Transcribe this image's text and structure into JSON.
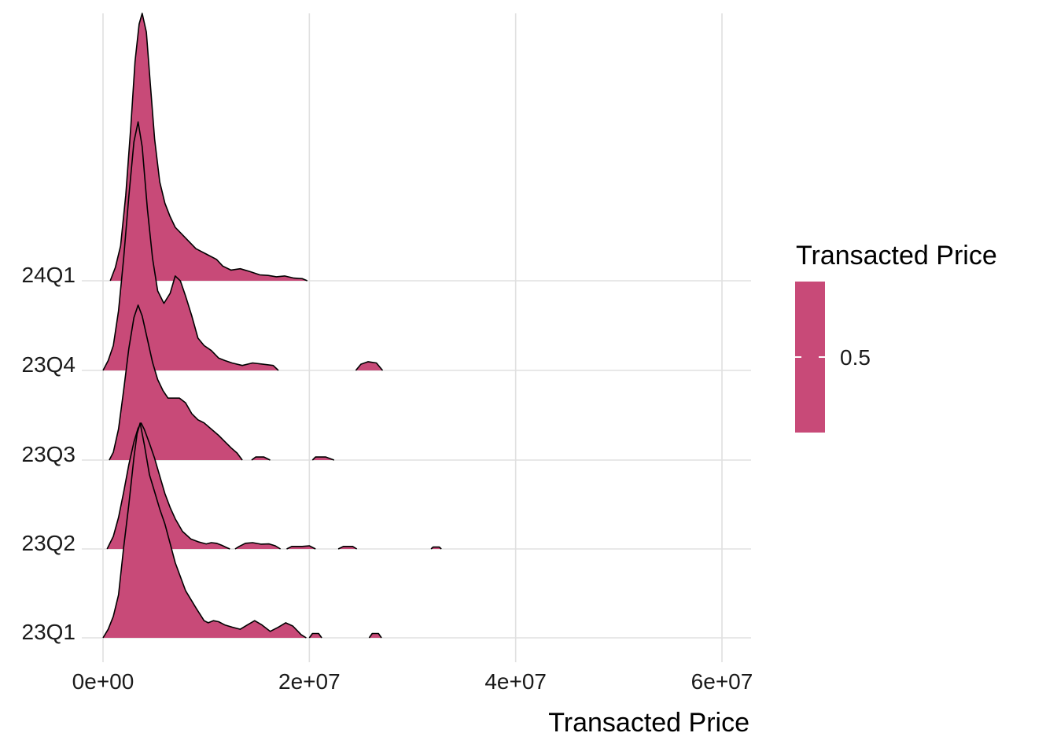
{
  "chart_data": {
    "type": "area",
    "subtype": "ridgeline",
    "xlabel": "Transacted Price",
    "ylabel": "",
    "xlim": [
      0,
      63000000
    ],
    "x_ticks": [
      {
        "value": 0,
        "label": "0e+00"
      },
      {
        "value": 20000000,
        "label": "2e+07"
      },
      {
        "value": 40000000,
        "label": "4e+07"
      },
      {
        "value": 60000000,
        "label": "6e+07"
      }
    ],
    "categories": [
      "23Q1",
      "23Q2",
      "23Q3",
      "23Q4",
      "24Q1"
    ],
    "grid": true,
    "fill_color": "#C84A78",
    "line_color": "#000000",
    "grid_color": "#E0E0E0",
    "legend": {
      "title": "Transacted Price",
      "position": "right",
      "label": "0.5"
    },
    "series": [
      {
        "name": "23Q1",
        "segments": [
          [
            [
              0,
              0
            ],
            [
              500000,
              0.04
            ],
            [
              1000000,
              0.1
            ],
            [
              1500000,
              0.2
            ],
            [
              2000000,
              0.42
            ],
            [
              2500000,
              0.62
            ],
            [
              3000000,
              0.84
            ],
            [
              3300000,
              0.95
            ],
            [
              3600000,
              1.0
            ],
            [
              4000000,
              0.9
            ],
            [
              4500000,
              0.76
            ],
            [
              5000000,
              0.68
            ],
            [
              5500000,
              0.6
            ],
            [
              6000000,
              0.53
            ],
            [
              6500000,
              0.44
            ],
            [
              7000000,
              0.35
            ],
            [
              8000000,
              0.22
            ],
            [
              9000000,
              0.14
            ],
            [
              9800000,
              0.08
            ],
            [
              10200000,
              0.07
            ],
            [
              10700000,
              0.08
            ],
            [
              11200000,
              0.075
            ],
            [
              11800000,
              0.06
            ],
            [
              12500000,
              0.05
            ],
            [
              13300000,
              0.04
            ],
            [
              14000000,
              0.06
            ],
            [
              14700000,
              0.08
            ],
            [
              15400000,
              0.06
            ],
            [
              16200000,
              0.03
            ],
            [
              17000000,
              0.05
            ],
            [
              17700000,
              0.07
            ],
            [
              18400000,
              0.055
            ],
            [
              19200000,
              0.015
            ],
            [
              19700000,
              0
            ]
          ],
          [
            [
              20000000,
              0
            ],
            [
              20300000,
              0.02
            ],
            [
              20900000,
              0.02
            ],
            [
              21200000,
              0
            ]
          ],
          [
            [
              25800000,
              0
            ],
            [
              26100000,
              0.02
            ],
            [
              26700000,
              0.02
            ],
            [
              27000000,
              0
            ]
          ]
        ]
      },
      {
        "name": "23Q2",
        "segments": [
          [
            [
              400000,
              0
            ],
            [
              1000000,
              0.1
            ],
            [
              1500000,
              0.25
            ],
            [
              2000000,
              0.45
            ],
            [
              2500000,
              0.67
            ],
            [
              3000000,
              0.85
            ],
            [
              3400000,
              0.96
            ],
            [
              3700000,
              1.0
            ],
            [
              4000000,
              0.95
            ],
            [
              4500000,
              0.84
            ],
            [
              5000000,
              0.72
            ],
            [
              5500000,
              0.58
            ],
            [
              6000000,
              0.44
            ],
            [
              6500000,
              0.33
            ],
            [
              7000000,
              0.24
            ],
            [
              7700000,
              0.14
            ],
            [
              8500000,
              0.08
            ],
            [
              9300000,
              0.055
            ],
            [
              10000000,
              0.04
            ],
            [
              10500000,
              0.05
            ],
            [
              11000000,
              0.045
            ],
            [
              11500000,
              0.03
            ],
            [
              12000000,
              0.01
            ],
            [
              12300000,
              0
            ]
          ],
          [
            [
              12800000,
              0
            ],
            [
              13200000,
              0.02
            ],
            [
              13800000,
              0.045
            ],
            [
              14500000,
              0.05
            ],
            [
              15300000,
              0.038
            ],
            [
              16100000,
              0.04
            ],
            [
              16700000,
              0.025
            ],
            [
              17200000,
              0
            ]
          ],
          [
            [
              17800000,
              0
            ],
            [
              18300000,
              0.02
            ],
            [
              19300000,
              0.02
            ],
            [
              20000000,
              0.025
            ],
            [
              20600000,
              0
            ]
          ],
          [
            [
              22800000,
              0
            ],
            [
              23300000,
              0.02
            ],
            [
              24200000,
              0.02
            ],
            [
              24600000,
              0
            ]
          ],
          [
            [
              31800000,
              0
            ],
            [
              32000000,
              0.015
            ],
            [
              32600000,
              0.015
            ],
            [
              32800000,
              0
            ]
          ]
        ]
      },
      {
        "name": "23Q3",
        "segments": [
          [
            [
              600000,
              0
            ],
            [
              1000000,
              0.05
            ],
            [
              1500000,
              0.2
            ],
            [
              2000000,
              0.45
            ],
            [
              2500000,
              0.72
            ],
            [
              3000000,
              0.92
            ],
            [
              3400000,
              1.0
            ],
            [
              3800000,
              0.93
            ],
            [
              4300000,
              0.78
            ],
            [
              4800000,
              0.63
            ],
            [
              5300000,
              0.52
            ],
            [
              5800000,
              0.45
            ],
            [
              6300000,
              0.4
            ],
            [
              6800000,
              0.4
            ],
            [
              7400000,
              0.4
            ],
            [
              8000000,
              0.37
            ],
            [
              8600000,
              0.3
            ],
            [
              9200000,
              0.26
            ],
            [
              9800000,
              0.24
            ],
            [
              10500000,
              0.2
            ],
            [
              11200000,
              0.16
            ],
            [
              11800000,
              0.12
            ],
            [
              12400000,
              0.08
            ],
            [
              13000000,
              0.045
            ],
            [
              13500000,
              0
            ]
          ],
          [
            [
              14400000,
              0
            ],
            [
              14800000,
              0.02
            ],
            [
              15600000,
              0.02
            ],
            [
              16200000,
              0
            ]
          ],
          [
            [
              20300000,
              0
            ],
            [
              20600000,
              0.02
            ],
            [
              21600000,
              0.02
            ],
            [
              22400000,
              0
            ]
          ]
        ]
      },
      {
        "name": "23Q4",
        "segments": [
          [
            [
              0,
              0
            ],
            [
              500000,
              0.04
            ],
            [
              1000000,
              0.1
            ],
            [
              1500000,
              0.24
            ],
            [
              2000000,
              0.45
            ],
            [
              2500000,
              0.7
            ],
            [
              3000000,
              0.92
            ],
            [
              3400000,
              1.0
            ],
            [
              3800000,
              0.9
            ],
            [
              4300000,
              0.65
            ],
            [
              4800000,
              0.45
            ],
            [
              5300000,
              0.32
            ],
            [
              5900000,
              0.27
            ],
            [
              6500000,
              0.31
            ],
            [
              7000000,
              0.38
            ],
            [
              7500000,
              0.36
            ],
            [
              8000000,
              0.3
            ],
            [
              8600000,
              0.22
            ],
            [
              9200000,
              0.13
            ],
            [
              9800000,
              0.1
            ],
            [
              10500000,
              0.08
            ],
            [
              11200000,
              0.05
            ],
            [
              11800000,
              0.04
            ],
            [
              12500000,
              0.03
            ],
            [
              13500000,
              0.02
            ],
            [
              14500000,
              0.03
            ],
            [
              15500000,
              0.025
            ],
            [
              16500000,
              0.02
            ],
            [
              17000000,
              0
            ]
          ],
          [
            [
              24500000,
              0
            ],
            [
              25000000,
              0.025
            ],
            [
              25700000,
              0.035
            ],
            [
              26500000,
              0.03
            ],
            [
              27100000,
              0
            ]
          ]
        ]
      },
      {
        "name": "24Q1",
        "segments": [
          [
            [
              700000,
              0
            ],
            [
              1200000,
              0.05
            ],
            [
              1700000,
              0.13
            ],
            [
              2200000,
              0.32
            ],
            [
              2700000,
              0.58
            ],
            [
              3100000,
              0.82
            ],
            [
              3500000,
              0.96
            ],
            [
              3800000,
              1.0
            ],
            [
              4200000,
              0.93
            ],
            [
              4600000,
              0.73
            ],
            [
              5000000,
              0.53
            ],
            [
              5500000,
              0.37
            ],
            [
              6000000,
              0.29
            ],
            [
              6500000,
              0.24
            ],
            [
              7000000,
              0.2
            ],
            [
              8000000,
              0.16
            ],
            [
              9000000,
              0.12
            ],
            [
              10000000,
              0.1
            ],
            [
              11000000,
              0.08
            ],
            [
              11600000,
              0.055
            ],
            [
              12400000,
              0.04
            ],
            [
              13300000,
              0.045
            ],
            [
              14200000,
              0.035
            ],
            [
              15200000,
              0.022
            ],
            [
              16000000,
              0.02
            ],
            [
              16800000,
              0.015
            ],
            [
              17600000,
              0.018
            ],
            [
              18500000,
              0.01
            ],
            [
              19300000,
              0.008
            ],
            [
              19800000,
              0
            ]
          ]
        ]
      }
    ]
  }
}
